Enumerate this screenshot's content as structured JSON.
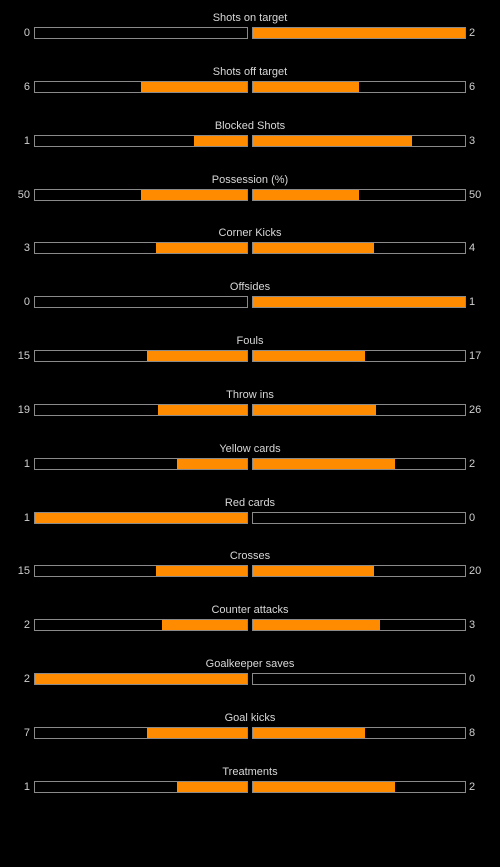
{
  "colors": {
    "background": "#000000",
    "fill": "#ff8c00",
    "bar_border": "#8a8a8a",
    "text": "#d0d0d0"
  },
  "stats": [
    {
      "label": "Shots on target",
      "home": 0,
      "away": 2,
      "home_fill": 0.0,
      "away_fill": 1.0
    },
    {
      "label": "Shots off target",
      "home": 6,
      "away": 6,
      "home_fill": 0.5,
      "away_fill": 0.5
    },
    {
      "label": "Blocked Shots",
      "home": 1,
      "away": 3,
      "home_fill": 0.25,
      "away_fill": 0.75
    },
    {
      "label": "Possession (%)",
      "home": 50,
      "away": 50,
      "home_fill": 0.5,
      "away_fill": 0.5
    },
    {
      "label": "Corner Kicks",
      "home": 3,
      "away": 4,
      "home_fill": 0.43,
      "away_fill": 0.57
    },
    {
      "label": "Offsides",
      "home": 0,
      "away": 1,
      "home_fill": 0.0,
      "away_fill": 1.0
    },
    {
      "label": "Fouls",
      "home": 15,
      "away": 17,
      "home_fill": 0.47,
      "away_fill": 0.53
    },
    {
      "label": "Throw ins",
      "home": 19,
      "away": 26,
      "home_fill": 0.42,
      "away_fill": 0.58
    },
    {
      "label": "Yellow cards",
      "home": 1,
      "away": 2,
      "home_fill": 0.33,
      "away_fill": 0.67
    },
    {
      "label": "Red cards",
      "home": 1,
      "away": 0,
      "home_fill": 1.0,
      "away_fill": 0.0
    },
    {
      "label": "Crosses",
      "home": 15,
      "away": 20,
      "home_fill": 0.43,
      "away_fill": 0.57
    },
    {
      "label": "Counter attacks",
      "home": 2,
      "away": 3,
      "home_fill": 0.4,
      "away_fill": 0.6
    },
    {
      "label": "Goalkeeper saves",
      "home": 2,
      "away": 0,
      "home_fill": 1.0,
      "away_fill": 0.0
    },
    {
      "label": "Goal kicks",
      "home": 7,
      "away": 8,
      "home_fill": 0.47,
      "away_fill": 0.53
    },
    {
      "label": "Treatments",
      "home": 1,
      "away": 2,
      "home_fill": 0.33,
      "away_fill": 0.67
    }
  ]
}
